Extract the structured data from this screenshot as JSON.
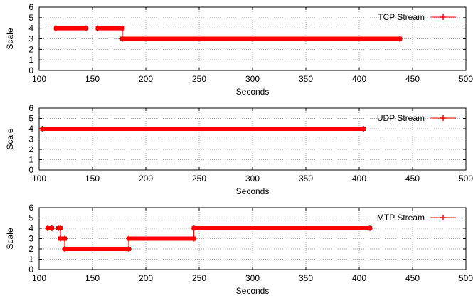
{
  "chart_data": [
    {
      "type": "line",
      "xlabel": "Seconds",
      "ylabel": "Scale",
      "xlim": [
        100,
        500
      ],
      "ylim": [
        0,
        6
      ],
      "xticks": [
        "100",
        "150",
        "200",
        "250",
        "300",
        "350",
        "400",
        "450",
        "500"
      ],
      "yticks": [
        "0",
        "1",
        "2",
        "3",
        "4",
        "5",
        "6"
      ],
      "grid": true,
      "legend_position": "top-right",
      "series": [
        {
          "name": "TCP Stream",
          "color": "#ff0000",
          "marker": "plus",
          "segments": [
            {
              "x": [
                116,
                144
              ],
              "y": 4
            },
            {
              "x": [
                155,
                178
              ],
              "y": 4
            },
            {
              "x": [
                178,
                438
              ],
              "y": 3
            }
          ]
        }
      ]
    },
    {
      "type": "line",
      "xlabel": "Seconds",
      "ylabel": "Scale",
      "xlim": [
        100,
        500
      ],
      "ylim": [
        0,
        6
      ],
      "xticks": [
        "100",
        "150",
        "200",
        "250",
        "300",
        "350",
        "400",
        "450",
        "500"
      ],
      "yticks": [
        "0",
        "1",
        "2",
        "3",
        "4",
        "5",
        "6"
      ],
      "grid": true,
      "legend_position": "top-right",
      "series": [
        {
          "name": "UDP Stream",
          "color": "#ff0000",
          "marker": "plus",
          "segments": [
            {
              "x": [
                103,
                404
              ],
              "y": 4
            }
          ]
        }
      ]
    },
    {
      "type": "line",
      "xlabel": "Seconds",
      "ylabel": "Scale",
      "xlim": [
        100,
        500
      ],
      "ylim": [
        0,
        6
      ],
      "xticks": [
        "100",
        "150",
        "200",
        "250",
        "300",
        "350",
        "400",
        "450",
        "500"
      ],
      "yticks": [
        "0",
        "1",
        "2",
        "3",
        "4",
        "5",
        "6"
      ],
      "grid": true,
      "legend_position": "top-right",
      "series": [
        {
          "name": "MTP Stream",
          "color": "#ff0000",
          "marker": "plus",
          "segments": [
            {
              "x": [
                108,
                112
              ],
              "y": 4
            },
            {
              "x": [
                118,
                120
              ],
              "y": 4
            },
            {
              "x": [
                120,
                124
              ],
              "y": 3
            },
            {
              "x": [
                124,
                184
              ],
              "y": 2
            },
            {
              "x": [
                184,
                245
              ],
              "y": 3
            },
            {
              "x": [
                245,
                410
              ],
              "y": 4
            }
          ]
        }
      ]
    }
  ]
}
